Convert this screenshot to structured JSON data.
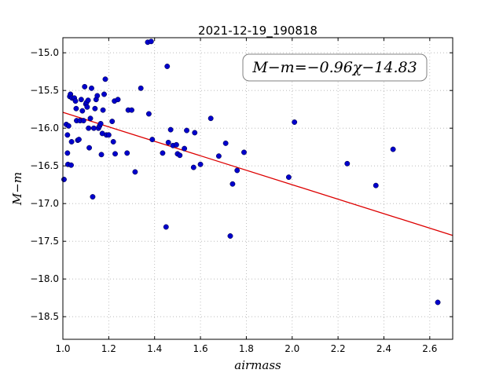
{
  "chart_data": {
    "type": "scatter",
    "title": "2021-12-19_190818",
    "xlabel": "airmass",
    "ylabel": "M−m",
    "xlim": [
      1.0,
      2.7
    ],
    "ylim": [
      -18.8,
      -14.8
    ],
    "grid": true,
    "xticks": [
      1.0,
      1.2,
      1.4,
      1.6,
      1.8,
      2.0,
      2.2,
      2.4,
      2.6
    ],
    "yticks": [
      -15.0,
      -15.5,
      -16.0,
      -16.5,
      -17.0,
      -17.5,
      -18.0,
      -18.5
    ],
    "xtick_labels": [
      "1.0",
      "1.2",
      "1.4",
      "1.6",
      "1.8",
      "2.0",
      "2.2",
      "2.4",
      "2.6"
    ],
    "ytick_labels": [
      "−15.0",
      "−15.5",
      "−16.0",
      "−16.5",
      "−17.0",
      "−17.5",
      "−18.0",
      "−18.5"
    ],
    "annotation": "M−m=−0.96χ−14.83",
    "annotation_position": "top-right",
    "point_color": "#0000cc",
    "fit_color": "#dd0000",
    "fit": {
      "slope": -0.96,
      "intercept": -14.83
    },
    "points": [
      [
        1.005,
        -16.68
      ],
      [
        1.015,
        -15.95
      ],
      [
        1.02,
        -16.09
      ],
      [
        1.02,
        -16.33
      ],
      [
        1.022,
        -16.48
      ],
      [
        1.025,
        -15.97
      ],
      [
        1.03,
        -15.58
      ],
      [
        1.033,
        -15.55
      ],
      [
        1.036,
        -16.49
      ],
      [
        1.038,
        -16.18
      ],
      [
        1.04,
        -15.6
      ],
      [
        1.05,
        -15.6
      ],
      [
        1.055,
        -15.64
      ],
      [
        1.058,
        -15.74
      ],
      [
        1.06,
        -15.9
      ],
      [
        1.065,
        -16.16
      ],
      [
        1.07,
        -16.15
      ],
      [
        1.075,
        -15.9
      ],
      [
        1.08,
        -15.62
      ],
      [
        1.085,
        -15.77
      ],
      [
        1.09,
        -15.9
      ],
      [
        1.095,
        -15.45
      ],
      [
        1.1,
        -15.68
      ],
      [
        1.103,
        -15.66
      ],
      [
        1.106,
        -15.72
      ],
      [
        1.11,
        -15.63
      ],
      [
        1.112,
        -16.0
      ],
      [
        1.115,
        -16.26
      ],
      [
        1.12,
        -15.87
      ],
      [
        1.125,
        -15.47
      ],
      [
        1.13,
        -16.91
      ],
      [
        1.135,
        -16.0
      ],
      [
        1.14,
        -15.74
      ],
      [
        1.145,
        -15.62
      ],
      [
        1.15,
        -15.57
      ],
      [
        1.155,
        -16.0
      ],
      [
        1.16,
        -15.97
      ],
      [
        1.165,
        -15.94
      ],
      [
        1.168,
        -16.35
      ],
      [
        1.172,
        -16.07
      ],
      [
        1.175,
        -15.76
      ],
      [
        1.18,
        -15.55
      ],
      [
        1.185,
        -15.35
      ],
      [
        1.19,
        -16.09
      ],
      [
        1.2,
        -16.09
      ],
      [
        1.215,
        -15.91
      ],
      [
        1.22,
        -16.18
      ],
      [
        1.225,
        -15.64
      ],
      [
        1.228,
        -16.34
      ],
      [
        1.24,
        -15.62
      ],
      [
        1.28,
        -16.33
      ],
      [
        1.285,
        -15.76
      ],
      [
        1.3,
        -15.76
      ],
      [
        1.315,
        -16.58
      ],
      [
        1.34,
        -15.47
      ],
      [
        1.37,
        -14.86
      ],
      [
        1.385,
        -14.85
      ],
      [
        1.375,
        -15.81
      ],
      [
        1.39,
        -16.15
      ],
      [
        1.435,
        -16.33
      ],
      [
        1.45,
        -17.31
      ],
      [
        1.455,
        -15.18
      ],
      [
        1.46,
        -16.19
      ],
      [
        1.47,
        -16.02
      ],
      [
        1.48,
        -16.23
      ],
      [
        1.495,
        -16.22
      ],
      [
        1.5,
        -16.34
      ],
      [
        1.51,
        -16.36
      ],
      [
        1.53,
        -16.27
      ],
      [
        1.54,
        -16.03
      ],
      [
        1.57,
        -16.52
      ],
      [
        1.575,
        -16.06
      ],
      [
        1.6,
        -16.48
      ],
      [
        1.645,
        -15.87
      ],
      [
        1.68,
        -16.37
      ],
      [
        1.71,
        -16.2
      ],
      [
        1.73,
        -17.43
      ],
      [
        1.74,
        -16.74
      ],
      [
        1.76,
        -16.56
      ],
      [
        1.79,
        -16.32
      ],
      [
        1.985,
        -16.65
      ],
      [
        2.01,
        -15.92
      ],
      [
        2.24,
        -16.47
      ],
      [
        2.365,
        -16.76
      ],
      [
        2.44,
        -16.28
      ],
      [
        2.635,
        -18.31
      ]
    ]
  }
}
